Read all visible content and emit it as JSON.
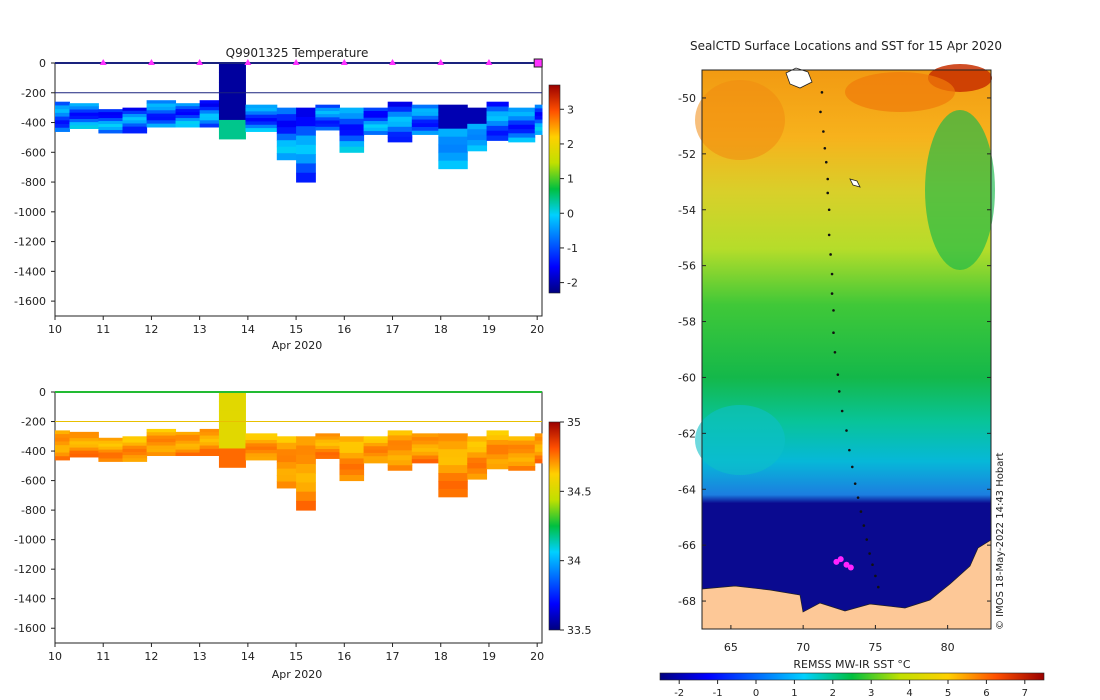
{
  "chart_data": [
    {
      "type": "heatmap",
      "title": "Q9901325  Temperature",
      "xlabel": "Apr 2020",
      "ylabel": "",
      "xlim": [
        10,
        20.1
      ],
      "ylim": [
        -1700,
        0
      ],
      "xticks": [
        10,
        11,
        12,
        13,
        14,
        15,
        16,
        17,
        18,
        19,
        20
      ],
      "yticks": [
        0,
        -200,
        -400,
        -600,
        -800,
        -1000,
        -1200,
        -1400,
        -1600
      ],
      "colorbar": {
        "min": -2.3,
        "max": 3.7,
        "ticks": [
          3,
          2,
          1,
          0,
          -1,
          -2
        ]
      },
      "surface_markers_x": [
        11,
        12,
        13,
        14,
        15,
        16,
        17,
        18,
        19
      ],
      "reference_depth": -200,
      "profiles": [
        {
          "x0": 10.0,
          "x1": 10.3,
          "top": -260,
          "bottom": -460
        },
        {
          "x0": 10.3,
          "x1": 10.9,
          "top": -270,
          "bottom": -440
        },
        {
          "x0": 10.9,
          "x1": 11.4,
          "top": -310,
          "bottom": -470
        },
        {
          "x0": 11.4,
          "x1": 11.9,
          "top": -300,
          "bottom": -470
        },
        {
          "x0": 11.9,
          "x1": 12.5,
          "top": -250,
          "bottom": -430
        },
        {
          "x0": 12.5,
          "x1": 13.0,
          "top": -270,
          "bottom": -430
        },
        {
          "x0": 13.0,
          "x1": 13.4,
          "top": -250,
          "bottom": -430
        },
        {
          "x0": 13.4,
          "x1": 13.95,
          "top": 0,
          "bottom": -510
        },
        {
          "x0": 13.95,
          "x1": 14.6,
          "top": -280,
          "bottom": -460
        },
        {
          "x0": 14.6,
          "x1": 15.0,
          "top": -300,
          "bottom": -650
        },
        {
          "x0": 15.0,
          "x1": 15.4,
          "top": -300,
          "bottom": -800
        },
        {
          "x0": 15.4,
          "x1": 15.9,
          "top": -280,
          "bottom": -450
        },
        {
          "x0": 15.9,
          "x1": 16.4,
          "top": -300,
          "bottom": -600
        },
        {
          "x0": 16.4,
          "x1": 16.9,
          "top": -300,
          "bottom": -480
        },
        {
          "x0": 16.9,
          "x1": 17.4,
          "top": -260,
          "bottom": -530
        },
        {
          "x0": 17.4,
          "x1": 17.95,
          "top": -280,
          "bottom": -480
        },
        {
          "x0": 17.95,
          "x1": 18.55,
          "top": -280,
          "bottom": -710
        },
        {
          "x0": 18.55,
          "x1": 18.95,
          "top": -300,
          "bottom": -590
        },
        {
          "x0": 18.95,
          "x1": 19.4,
          "top": -260,
          "bottom": -520
        },
        {
          "x0": 19.4,
          "x1": 19.95,
          "top": -300,
          "bottom": -530
        },
        {
          "x0": 19.95,
          "x1": 20.1,
          "top": -280,
          "bottom": -480
        }
      ]
    },
    {
      "type": "heatmap",
      "title": "",
      "xlabel": "Apr 2020",
      "ylabel": "",
      "xlim": [
        10,
        20.1
      ],
      "ylim": [
        -1700,
        0
      ],
      "xticks": [
        10,
        11,
        12,
        13,
        14,
        15,
        16,
        17,
        18,
        19,
        20
      ],
      "yticks": [
        0,
        -200,
        -400,
        -600,
        -800,
        -1000,
        -1200,
        -1400,
        -1600
      ],
      "colorbar": {
        "min": 33.5,
        "max": 35.0,
        "ticks": [
          "35",
          "34.5",
          "34",
          "33.5"
        ]
      },
      "reference_depth": -200
    },
    {
      "type": "heatmap",
      "title": "SealCTD Surface Locations and SST for 15 Apr 2020",
      "xlabel": "",
      "ylabel": "",
      "xlim": [
        63,
        83
      ],
      "ylim": [
        -69,
        -49
      ],
      "xticks": [
        65,
        70,
        75,
        80
      ],
      "yticks": [
        -50,
        -52,
        -54,
        -56,
        -58,
        -60,
        -62,
        -64,
        -66,
        -68
      ],
      "colorbar": {
        "label": "REMSS MW-IR SST °C",
        "min": -2.5,
        "max": 7.5,
        "ticks": [
          -2,
          -1,
          0,
          1,
          2,
          3,
          4,
          5,
          6,
          7
        ]
      },
      "track_points_lon": [
        71.3,
        71.2,
        71.4,
        71.5,
        71.6,
        71.7,
        71.7,
        71.8,
        71.8,
        71.9,
        72.0,
        72.0,
        72.1,
        72.1,
        72.2,
        72.4,
        72.5,
        72.7,
        73.0,
        73.2,
        73.4,
        73.6,
        73.8,
        74.0,
        74.2,
        74.4,
        74.6,
        74.8,
        75.0,
        75.2
      ],
      "track_points_lat": [
        -49.8,
        -50.5,
        -51.2,
        -51.8,
        -52.3,
        -52.9,
        -53.4,
        -54.0,
        -54.9,
        -55.6,
        -56.3,
        -57.0,
        -57.6,
        -58.4,
        -59.1,
        -59.9,
        -60.5,
        -61.2,
        -61.9,
        -62.6,
        -63.2,
        -63.8,
        -64.3,
        -64.8,
        -65.3,
        -65.8,
        -66.3,
        -66.7,
        -67.1,
        -67.5
      ],
      "latest_points_lon": [
        72.3,
        72.6,
        73.0,
        73.3
      ],
      "latest_points_lat": [
        -66.6,
        -66.5,
        -66.7,
        -66.8
      ],
      "credit": "© IMOS 18-May-2022 14:43 Hobart"
    }
  ]
}
